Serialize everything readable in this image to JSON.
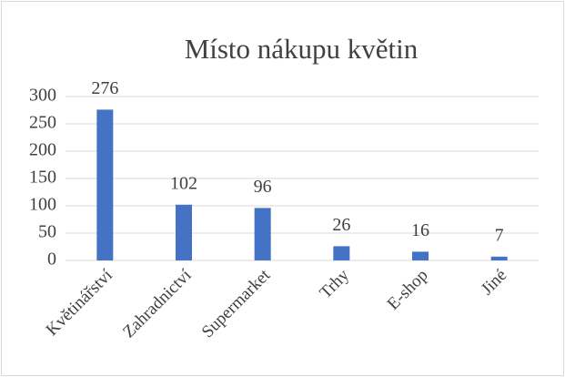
{
  "chart_data": {
    "type": "bar",
    "title": "Místo nákupu květin",
    "categories": [
      "Květinářství",
      "Zahradnictví",
      "Supermarket",
      "Trhy",
      "E-shop",
      "Jiné"
    ],
    "values": [
      276,
      102,
      96,
      26,
      16,
      7
    ],
    "color": "#4472c4",
    "ylim": [
      0,
      300
    ],
    "yticks": [
      0,
      50,
      100,
      150,
      200,
      250,
      300
    ],
    "grid": true
  }
}
